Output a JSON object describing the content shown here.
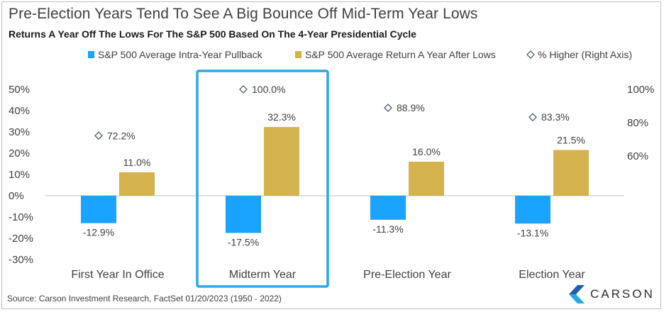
{
  "chart_data": {
    "type": "bar",
    "title": "Pre-Election Years Tend To See A Big Bounce Off Mid-Term Year Lows",
    "subtitle": "Returns A Year Off The Lows For The S&P 500 Based On The 4-Year Presidential Cycle",
    "categories": [
      "First Year In Office",
      "Midterm Year",
      "Pre-Election Year",
      "Election Year"
    ],
    "series": [
      {
        "name": "S&P 500 Average Intra-Year Pullback",
        "values": [
          -12.9,
          -17.5,
          -11.3,
          -13.1
        ],
        "color": "#1aa3ff",
        "axis": "left"
      },
      {
        "name": "S&P 500 Average Return A Year After Lows",
        "values": [
          11.0,
          32.3,
          16.0,
          21.5
        ],
        "color": "#d4b34f",
        "axis": "left"
      },
      {
        "name": "% Higher (Right Axis)",
        "values": [
          72.2,
          100.0,
          88.9,
          83.3
        ],
        "marker": "diamond",
        "axis": "right"
      }
    ],
    "bar_labels": [
      [
        "-12.9%",
        "-17.5%",
        "-11.3%",
        "-13.1%"
      ],
      [
        "11.0%",
        "32.3%",
        "16.0%",
        "21.5%"
      ]
    ],
    "marker_labels": [
      "72.2%",
      "100.0%",
      "88.9%",
      "83.3%"
    ],
    "y_left": {
      "min": -30,
      "max": 50,
      "ticks": [
        50,
        40,
        30,
        20,
        10,
        0,
        -10,
        -20,
        -30
      ],
      "tick_labels": [
        "50%",
        "40%",
        "30%",
        "20%",
        "10%",
        "0%",
        "-10%",
        "-20%",
        "-30%"
      ]
    },
    "y_right": {
      "min": 40,
      "max": 100,
      "ticks": [
        100,
        80,
        60
      ],
      "tick_labels": [
        "100%",
        "80%",
        "60%"
      ]
    },
    "highlighted_category": "Midterm Year",
    "highlight_color": "#2aa7ec",
    "legend_position": "top",
    "grid": false
  },
  "source": "Source: Carson Investment Research, FactSet 01/20/2023 (1950 - 2022)",
  "logo": {
    "text": "CARSON",
    "colors": [
      "#1f5fa8",
      "#27a8e0"
    ]
  }
}
